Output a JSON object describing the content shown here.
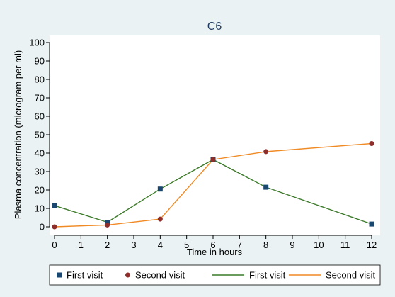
{
  "chart_data": {
    "type": "line",
    "title": "C6",
    "xlabel": "Time in hours",
    "ylabel": "Plasma concentration (microgram per ml)",
    "xlim": [
      0,
      12
    ],
    "ylim": [
      0,
      100
    ],
    "x_ticks": [
      0,
      1,
      2,
      3,
      4,
      5,
      6,
      7,
      8,
      9,
      10,
      11,
      12
    ],
    "y_ticks": [
      0,
      10,
      20,
      30,
      40,
      50,
      60,
      70,
      80,
      90,
      100
    ],
    "grid": false,
    "legend_position": "bottom",
    "series": [
      {
        "name": "First visit",
        "color": "#1a476f",
        "line_color": "#3c7a2a",
        "marker": "square",
        "x": [
          0,
          2,
          4,
          6,
          8,
          12
        ],
        "y": [
          11.5,
          2.5,
          20.5,
          36.5,
          21.5,
          1.5
        ]
      },
      {
        "name": "Second visit",
        "color": "#8f2d2a",
        "line_color": "#f08a24",
        "marker": "circle",
        "x": [
          0,
          2,
          4,
          6,
          8,
          12
        ],
        "y": [
          0,
          1,
          4.2,
          36.5,
          40.8,
          45.2
        ]
      }
    ],
    "legend": [
      {
        "label": "First visit",
        "kind": "marker",
        "shape": "square",
        "color": "#1a476f"
      },
      {
        "label": "Second visit",
        "kind": "marker",
        "shape": "circle",
        "color": "#8f2d2a"
      },
      {
        "label": "First visit",
        "kind": "line",
        "color": "#3c7a2a"
      },
      {
        "label": "Second visit",
        "kind": "line",
        "color": "#f08a24"
      }
    ]
  }
}
